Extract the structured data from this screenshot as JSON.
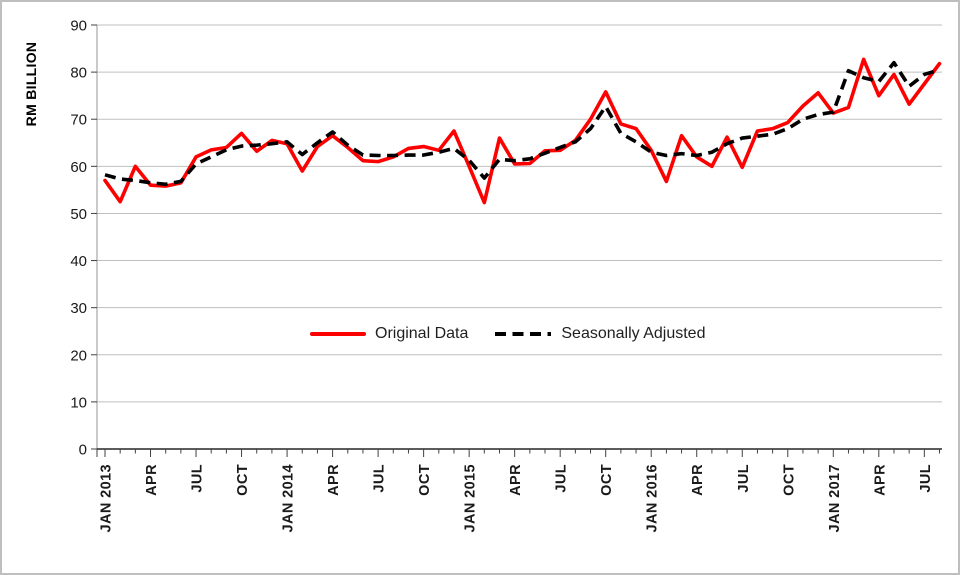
{
  "chart_data": {
    "type": "line",
    "title": "",
    "ylabel": "RM BILLION",
    "xlabel": "",
    "ylim": [
      0,
      90
    ],
    "ytick_step": 10,
    "y_tick_labels": [
      "90",
      "80",
      "70",
      "60",
      "50",
      "40",
      "30",
      "20",
      "10",
      "0"
    ],
    "x_tick_labels": [
      "JAN 2013",
      "APR",
      "JUL",
      "OCT",
      "JAN 2014",
      "APR",
      "JUL",
      "OCT",
      "JAN 2015",
      "APR",
      "JUL",
      "OCT",
      "JAN 2016",
      "APR",
      "JUL",
      "OCT",
      "JAN 2017",
      "APR",
      "JUL"
    ],
    "x_tick_every": 3,
    "n_points": 56,
    "grid": "horizontal",
    "legend_position": "center-middle",
    "series": [
      {
        "name": "Original Data",
        "color": "#FF0000",
        "style": "solid",
        "values": [
          57.0,
          52.5,
          60.0,
          56.0,
          55.8,
          56.5,
          62.0,
          63.5,
          64.0,
          67.0,
          63.2,
          65.5,
          64.8,
          59.0,
          64.2,
          66.5,
          64.0,
          61.2,
          61.0,
          62.0,
          63.8,
          64.2,
          63.4,
          67.5,
          60.0,
          52.3,
          66.0,
          60.5,
          60.6,
          63.3,
          63.4,
          65.5,
          70.0,
          75.8,
          69.0,
          68.0,
          63.4,
          56.8,
          66.5,
          62.0,
          60.0,
          66.2,
          59.8,
          67.5,
          68.0,
          69.3,
          72.8,
          75.6,
          71.3,
          72.5,
          82.7,
          75.0,
          79.5,
          73.2,
          77.5,
          81.8
        ]
      },
      {
        "name": "Seasonally Adjusted",
        "color": "#000000",
        "style": "dashed",
        "values": [
          58.2,
          57.3,
          57.0,
          56.5,
          56.2,
          56.8,
          60.5,
          62.0,
          63.5,
          64.3,
          64.5,
          64.8,
          65.2,
          62.5,
          65.0,
          67.3,
          64.5,
          62.4,
          62.3,
          62.3,
          62.4,
          62.4,
          63.0,
          63.8,
          61.3,
          57.5,
          61.5,
          61.2,
          61.6,
          62.8,
          64.0,
          65.2,
          68.0,
          72.7,
          67.0,
          65.2,
          63.0,
          62.3,
          62.7,
          62.3,
          63.0,
          64.8,
          66.0,
          66.4,
          66.8,
          68.0,
          70.0,
          71.0,
          71.5,
          80.3,
          78.8,
          78.0,
          82.0,
          77.0,
          79.5,
          80.5
        ]
      }
    ],
    "colors": {
      "gridline": "#BFBFBF",
      "y_axis_line": "#A6A6A6",
      "x_axis_line": "#262626",
      "tick": "#404040",
      "frame_border": "#BFBFBF"
    }
  }
}
